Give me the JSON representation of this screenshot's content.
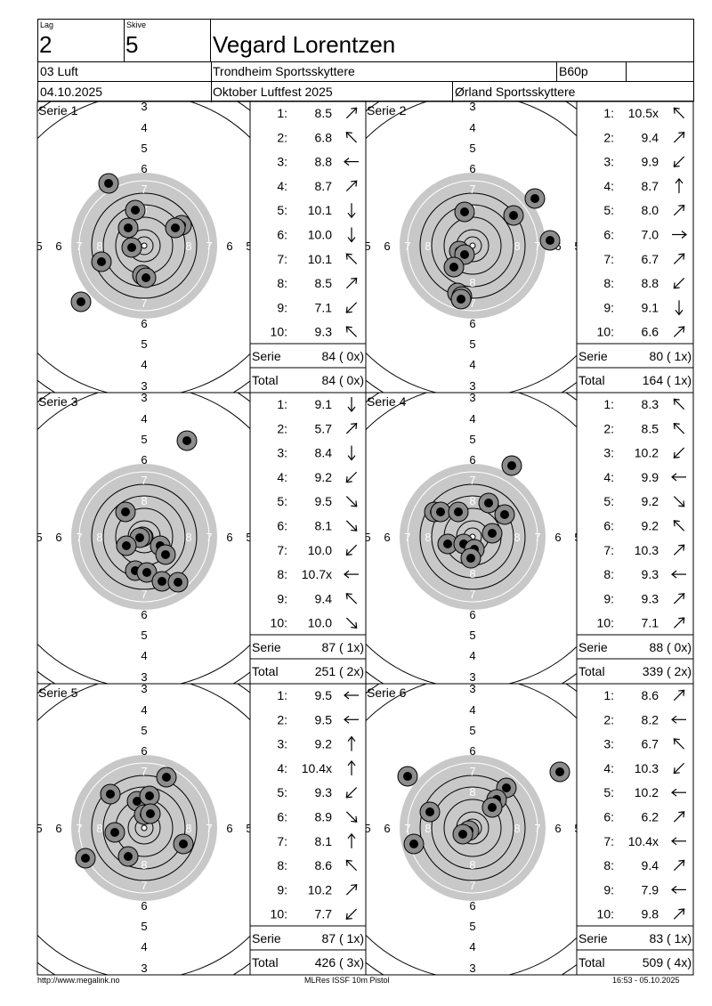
{
  "header": {
    "lag_label": "Lag",
    "lag_value": "2",
    "skive_label": "Skive",
    "skive_value": "5",
    "shooter_name": "Vegard Lorentzen",
    "class": "03 Luft",
    "club": "Trondheim Sportsskyttere",
    "category": "B60p",
    "date": "04.10.2025",
    "event": "Oktober Luftfest 2025",
    "host": "Ørland Sportsskyttere"
  },
  "series": [
    {
      "label": "Serie 1",
      "shots": [
        {
          "n": "1:",
          "score": "8.5",
          "dir": "ne"
        },
        {
          "n": "2:",
          "score": "6.8",
          "dir": "nw"
        },
        {
          "n": "3:",
          "score": "8.8",
          "dir": "w"
        },
        {
          "n": "4:",
          "score": "8.7",
          "dir": "ne"
        },
        {
          "n": "5:",
          "score": "10.1",
          "dir": "s"
        },
        {
          "n": "6:",
          "score": "10.0",
          "dir": "s"
        },
        {
          "n": "7:",
          "score": "10.1",
          "dir": "nw"
        },
        {
          "n": "8:",
          "score": "8.5",
          "dir": "ne"
        },
        {
          "n": "9:",
          "score": "7.1",
          "dir": "sw"
        },
        {
          "n": "10:",
          "score": "9.3",
          "dir": "nw"
        }
      ],
      "serie_label": "Serie",
      "serie_value": "84 ( 0x)",
      "total_label": "Total",
      "total_value": "84 ( 0x)"
    },
    {
      "label": "Serie 2",
      "shots": [
        {
          "n": "1:",
          "score": "10.5x",
          "dir": "nw"
        },
        {
          "n": "2:",
          "score": "9.4",
          "dir": "ne"
        },
        {
          "n": "3:",
          "score": "9.9",
          "dir": "sw"
        },
        {
          "n": "4:",
          "score": "8.7",
          "dir": "n"
        },
        {
          "n": "5:",
          "score": "8.0",
          "dir": "ne"
        },
        {
          "n": "6:",
          "score": "7.0",
          "dir": "e"
        },
        {
          "n": "7:",
          "score": "6.7",
          "dir": "ne"
        },
        {
          "n": "8:",
          "score": "8.8",
          "dir": "sw"
        },
        {
          "n": "9:",
          "score": "9.1",
          "dir": "s"
        },
        {
          "n": "10:",
          "score": "6.6",
          "dir": "ne"
        }
      ],
      "serie_label": "Serie",
      "serie_value": "80 ( 1x)",
      "total_label": "Total",
      "total_value": "164 ( 1x)"
    },
    {
      "label": "Serie 3",
      "shots": [
        {
          "n": "1:",
          "score": "9.1",
          "dir": "s"
        },
        {
          "n": "2:",
          "score": "5.7",
          "dir": "ne"
        },
        {
          "n": "3:",
          "score": "8.4",
          "dir": "s"
        },
        {
          "n": "4:",
          "score": "9.2",
          "dir": "sw"
        },
        {
          "n": "5:",
          "score": "9.5",
          "dir": "se"
        },
        {
          "n": "6:",
          "score": "8.1",
          "dir": "se"
        },
        {
          "n": "7:",
          "score": "10.0",
          "dir": "sw"
        },
        {
          "n": "8:",
          "score": "10.7x",
          "dir": "w"
        },
        {
          "n": "9:",
          "score": "9.4",
          "dir": "nw"
        },
        {
          "n": "10:",
          "score": "10.0",
          "dir": "se"
        }
      ],
      "serie_label": "Serie",
      "serie_value": "87 ( 1x)",
      "total_label": "Total",
      "total_value": "251 ( 2x)"
    },
    {
      "label": "Serie 4",
      "shots": [
        {
          "n": "1:",
          "score": "8.3",
          "dir": "nw"
        },
        {
          "n": "2:",
          "score": "8.5",
          "dir": "nw"
        },
        {
          "n": "3:",
          "score": "10.2",
          "dir": "sw"
        },
        {
          "n": "4:",
          "score": "9.9",
          "dir": "w"
        },
        {
          "n": "5:",
          "score": "9.2",
          "dir": "se"
        },
        {
          "n": "6:",
          "score": "9.2",
          "dir": "nw"
        },
        {
          "n": "7:",
          "score": "10.3",
          "dir": "ne"
        },
        {
          "n": "8:",
          "score": "9.3",
          "dir": "w"
        },
        {
          "n": "9:",
          "score": "9.3",
          "dir": "ne"
        },
        {
          "n": "10:",
          "score": "7.1",
          "dir": "ne"
        }
      ],
      "serie_label": "Serie",
      "serie_value": "88 ( 0x)",
      "total_label": "Total",
      "total_value": "339 ( 2x)"
    },
    {
      "label": "Serie 5",
      "shots": [
        {
          "n": "1:",
          "score": "9.5",
          "dir": "w"
        },
        {
          "n": "2:",
          "score": "9.5",
          "dir": "w"
        },
        {
          "n": "3:",
          "score": "9.2",
          "dir": "n"
        },
        {
          "n": "4:",
          "score": "10.4x",
          "dir": "n"
        },
        {
          "n": "5:",
          "score": "9.3",
          "dir": "sw"
        },
        {
          "n": "6:",
          "score": "8.9",
          "dir": "se"
        },
        {
          "n": "7:",
          "score": "8.1",
          "dir": "n"
        },
        {
          "n": "8:",
          "score": "8.6",
          "dir": "nw"
        },
        {
          "n": "9:",
          "score": "10.2",
          "dir": "ne"
        },
        {
          "n": "10:",
          "score": "7.7",
          "dir": "sw"
        }
      ],
      "serie_label": "Serie",
      "serie_value": "87 ( 1x)",
      "total_label": "Total",
      "total_value": "426 ( 3x)"
    },
    {
      "label": "Serie 6",
      "shots": [
        {
          "n": "1:",
          "score": "8.6",
          "dir": "ne"
        },
        {
          "n": "2:",
          "score": "8.2",
          "dir": "w"
        },
        {
          "n": "3:",
          "score": "6.7",
          "dir": "nw"
        },
        {
          "n": "4:",
          "score": "10.3",
          "dir": "sw"
        },
        {
          "n": "5:",
          "score": "10.2",
          "dir": "w"
        },
        {
          "n": "6:",
          "score": "6.2",
          "dir": "ne"
        },
        {
          "n": "7:",
          "score": "10.4x",
          "dir": "w"
        },
        {
          "n": "8:",
          "score": "9.4",
          "dir": "ne"
        },
        {
          "n": "9:",
          "score": "7.9",
          "dir": "w"
        },
        {
          "n": "10:",
          "score": "9.8",
          "dir": "ne"
        }
      ],
      "serie_label": "Serie",
      "serie_value": "83 ( 1x)",
      "total_label": "Total",
      "total_value": "509 ( 4x)"
    }
  ],
  "target_ring_labels": [
    "3",
    "4",
    "5",
    "6",
    "7",
    "8"
  ],
  "colors": {
    "black_area": "#c8c8c8",
    "shot_outer": "#8c8c8c",
    "shot_inner": "#000000"
  },
  "footer": {
    "url": "http://www.megalink.no",
    "software": "MLRes ISSF 10m Pistol",
    "timestamp": "16:53 - 05.10.2025"
  }
}
